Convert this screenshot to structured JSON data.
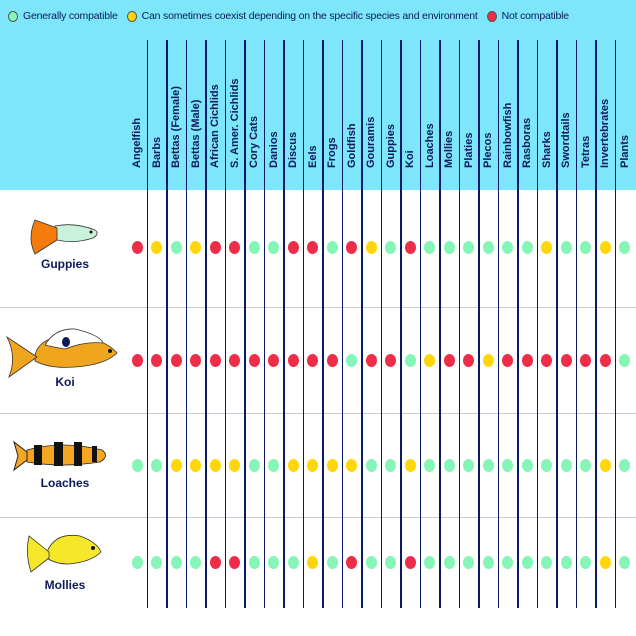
{
  "legend": [
    {
      "label": "Generally compatible",
      "color": "#86f5b8",
      "code": "G"
    },
    {
      "label": "Can sometimes coexist depending on the specific species and environment",
      "color": "#ffd60a",
      "code": "Y"
    },
    {
      "label": "Not compatible",
      "color": "#ee2e48",
      "code": "R"
    }
  ],
  "chart_data": {
    "type": "table",
    "columns": [
      "Angelfish",
      "Barbs",
      "Bettas (Female)",
      "Bettas (Male)",
      "African Cichlids",
      "S. Amer. Cichlids",
      "Cory Cats",
      "Danios",
      "Discus",
      "Eels",
      "Frogs",
      "Goldfish",
      "Gouramis",
      "Guppies",
      "Koi",
      "Loaches",
      "Mollies",
      "Platies",
      "Plecos",
      "Rainbowfish",
      "Rasboras",
      "Sharks",
      "Swordtails",
      "Tetras",
      "Invertebrates",
      "Plants"
    ],
    "rows": [
      {
        "name": "Guppies",
        "icon": "guppy-fish-icon",
        "values": [
          "R",
          "Y",
          "G",
          "Y",
          "R",
          "R",
          "G",
          "G",
          "R",
          "R",
          "G",
          "R",
          "Y",
          "G",
          "R",
          "G",
          "G",
          "G",
          "G",
          "G",
          "G",
          "Y",
          "G",
          "G",
          "Y",
          "G"
        ]
      },
      {
        "name": "Koi",
        "icon": "koi-fish-icon",
        "values": [
          "R",
          "R",
          "R",
          "R",
          "R",
          "R",
          "R",
          "R",
          "R",
          "R",
          "R",
          "G",
          "R",
          "R",
          "G",
          "Y",
          "R",
          "R",
          "Y",
          "R",
          "R",
          "R",
          "R",
          "R",
          "R",
          "G"
        ]
      },
      {
        "name": "Loaches",
        "icon": "loach-fish-icon",
        "values": [
          "G",
          "G",
          "Y",
          "Y",
          "Y",
          "Y",
          "G",
          "G",
          "Y",
          "Y",
          "Y",
          "Y",
          "G",
          "G",
          "Y",
          "G",
          "G",
          "G",
          "G",
          "G",
          "G",
          "G",
          "G",
          "G",
          "Y",
          "G"
        ]
      },
      {
        "name": "Mollies",
        "icon": "molly-fish-icon",
        "values": [
          "G",
          "G",
          "G",
          "G",
          "R",
          "R",
          "G",
          "G",
          "G",
          "Y",
          "G",
          "R",
          "G",
          "G",
          "R",
          "G",
          "G",
          "G",
          "G",
          "G",
          "G",
          "G",
          "G",
          "G",
          "Y",
          "G"
        ]
      }
    ]
  }
}
